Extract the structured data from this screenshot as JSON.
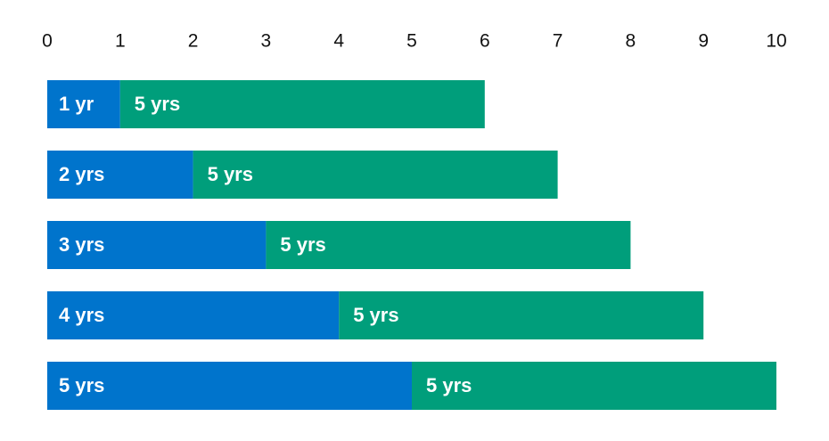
{
  "chart_data": {
    "type": "stacked-barh",
    "xlim": [
      0,
      10
    ],
    "xticks": [
      0,
      1,
      2,
      3,
      4,
      5,
      6,
      7,
      8,
      9,
      10
    ],
    "grid": false,
    "series": [
      {
        "color": "#0074cc",
        "values": [
          1,
          2,
          3,
          4,
          5
        ],
        "value_labels": [
          "1 yr",
          "2 yrs",
          "3 yrs",
          "4 yrs",
          "5 yrs"
        ]
      },
      {
        "color": "#009e7b",
        "values": [
          5,
          5,
          5,
          5,
          5
        ],
        "value_labels": [
          "5 yrs",
          "5 yrs",
          "5 yrs",
          "5 yrs",
          "5 yrs"
        ]
      }
    ]
  }
}
